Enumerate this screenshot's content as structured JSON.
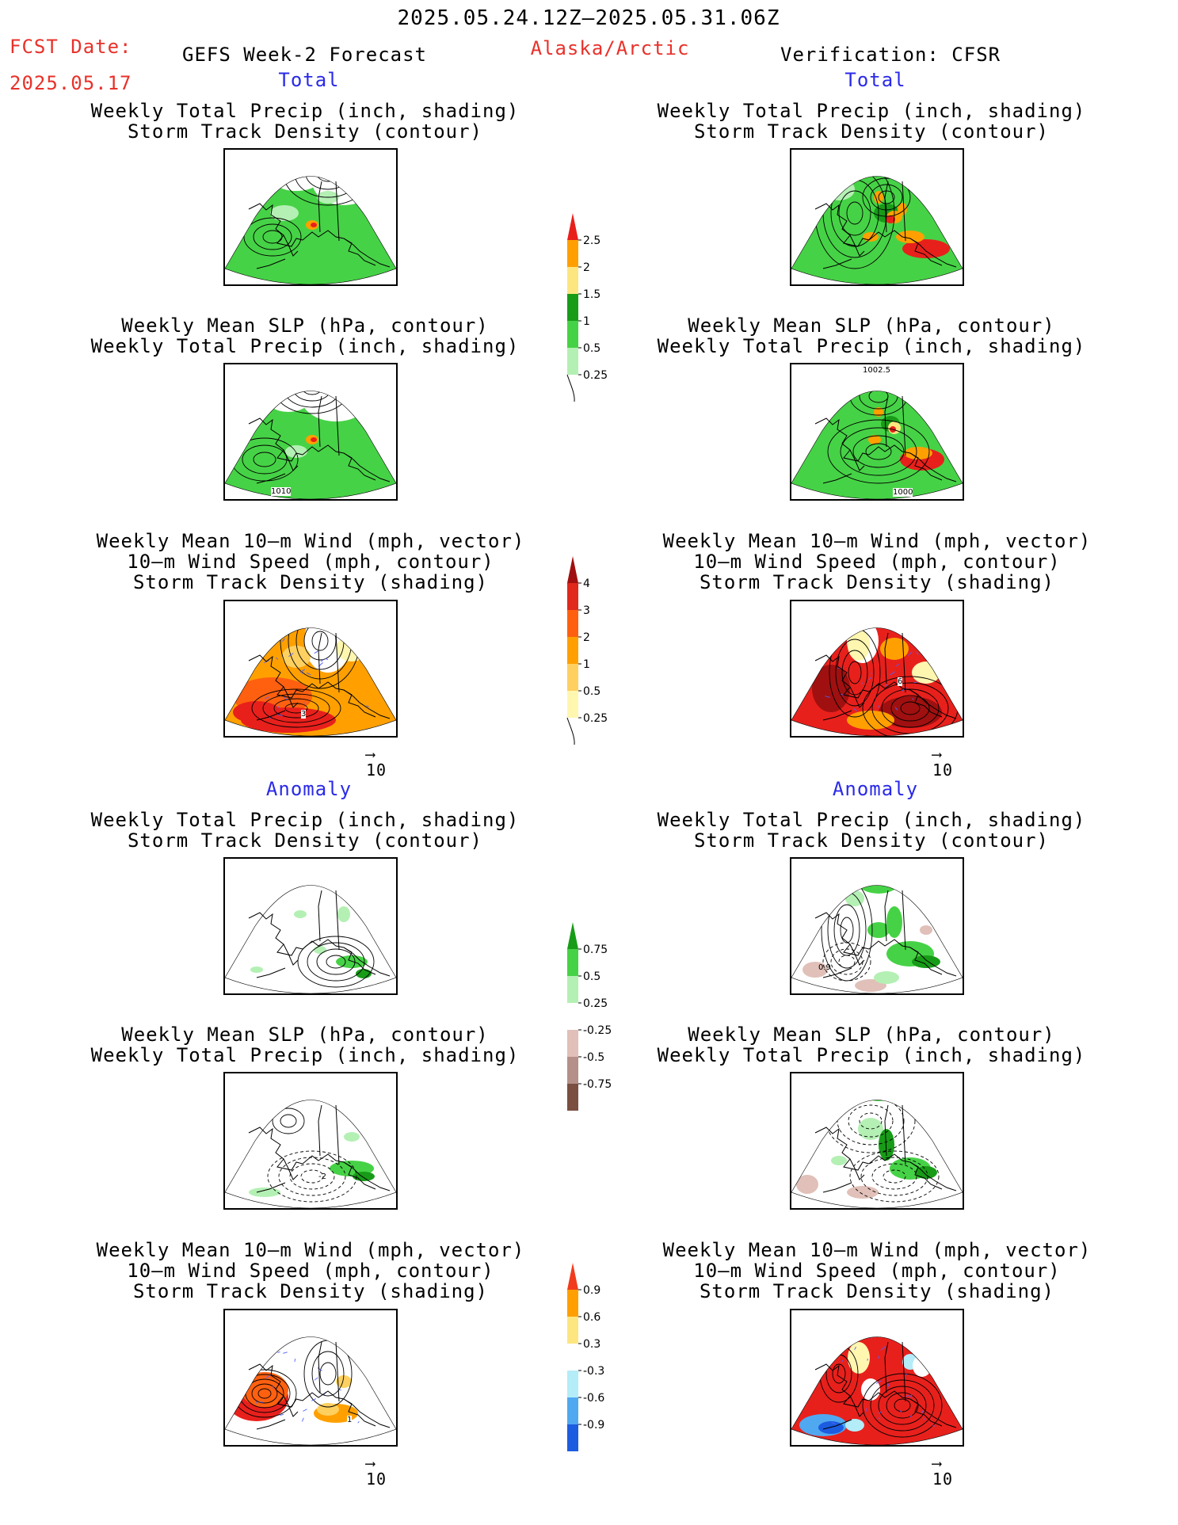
{
  "header": {
    "period": "2025.05.24.12Z–2025.05.31.06Z",
    "fcst_label": "FCST Date:",
    "fcst_date": "2025.05.17",
    "model": "GEFS Week-2 Forecast",
    "region": "Alaska/Arctic",
    "verification": "Verification: CFSR"
  },
  "sections": {
    "total": "Total",
    "anomaly": "Anomaly"
  },
  "titles": {
    "precip_track": [
      "Weekly Total Precip (inch, shading)",
      "Storm Track Density (contour)"
    ],
    "slp_precip": [
      "Weekly Mean SLP (hPa, contour)",
      "Weekly Total Precip (inch, shading)"
    ],
    "wind": [
      "Weekly Mean 10–m Wind (mph, vector)",
      "10–m Wind Speed (mph, contour)",
      "Storm Track Density (shading)"
    ]
  },
  "vector_scale": "10",
  "contour_labels": {
    "left_slp_total": "1010",
    "right_slp_total_top": "1002.5",
    "right_slp_total_bottom": "1000",
    "left_wind_total": "3",
    "right_wind_total": "6",
    "right_precip_anom": "0.9",
    "left_slp_anom": "-2",
    "left_wind_anom": "1"
  },
  "colorbars": {
    "precip_total": {
      "labels": [
        "2.5",
        "2",
        "1.5",
        "1",
        "0.5",
        "0.25"
      ],
      "colors": [
        "#e8201c",
        "#ffa000",
        "#fde680",
        "#189c18",
        "#46d246",
        "#b4f0b4"
      ]
    },
    "track_total": {
      "labels": [
        "4",
        "3",
        "2",
        "1",
        "0.5",
        "0.25"
      ],
      "colors": [
        "#a01010",
        "#e0281c",
        "#ff6010",
        "#ffa000",
        "#fdd060",
        "#fff6b0"
      ]
    },
    "precip_anom": {
      "labels": [
        "0.75",
        "0.5",
        "0.25",
        "-0.25",
        "-0.5",
        "-0.75"
      ],
      "colors": [
        "#189c18",
        "#46d246",
        "#b4f0b4",
        "#ffffff",
        "#e0c0b8",
        "#b49088",
        "#7a4e40"
      ]
    },
    "track_anom": {
      "labels": [
        "0.9",
        "0.6",
        "0.3",
        "-0.3",
        "-0.6",
        "-0.9"
      ],
      "colors": [
        "#f03c1c",
        "#ffa000",
        "#fde680",
        "#ffffff",
        "#b4ecf8",
        "#50a8f0",
        "#1c5ce0"
      ]
    }
  },
  "colors": {
    "title_red": "#e8312a",
    "title_blue": "#2a2ae8"
  }
}
